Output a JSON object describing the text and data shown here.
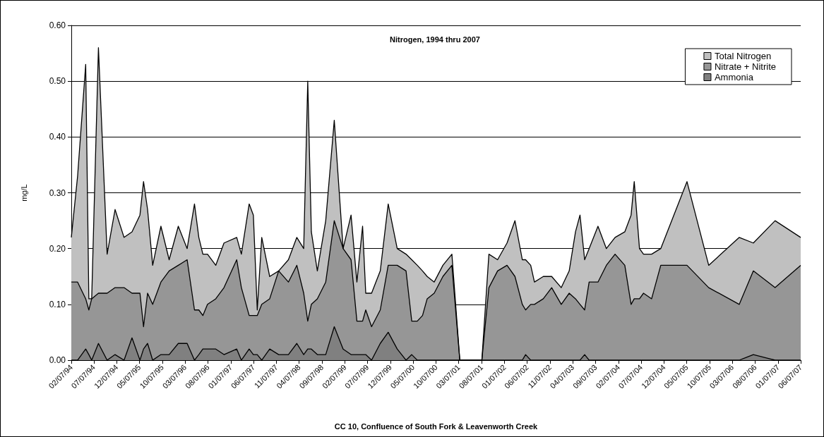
{
  "chart_data": {
    "type": "area",
    "title": "Nitrogen, 1994 thru 2007",
    "xlabel": "CC 10, Confluence of South Fork & Leavenworth Creek",
    "ylabel": "mg/L",
    "x": [
      "1994-02-07",
      "1994-03-21",
      "1994-05-14",
      "1994-06-04",
      "1994-06-23",
      "1994-08-07",
      "1994-10-04",
      "1994-11-26",
      "1995-01-25",
      "1995-03-19",
      "1995-05-11",
      "1995-06-04",
      "1995-07-01",
      "1995-08-04",
      "1995-09-28",
      "1995-11-22",
      "1996-01-22",
      "1996-03-21",
      "1996-05-09",
      "1996-06-07",
      "1996-07-04",
      "1996-08-04",
      "1996-09-28",
      "1996-11-22",
      "1997-02-15",
      "1997-03-18",
      "1997-05-09",
      "1997-06-06",
      "1997-07-02",
      "1997-08-01",
      "1997-09-23",
      "1997-11-22",
      "1998-01-26",
      "1998-03-23",
      "1998-05-08",
      "1998-06-04",
      "1998-06-28",
      "1998-08-07",
      "1998-10-02",
      "1998-11-28",
      "1999-01-26",
      "1999-03-20",
      "1999-04-28",
      "1999-06-05",
      "1999-06-26",
      "1999-08-04",
      "1999-10-01",
      "1999-11-23",
      "2000-01-22",
      "2000-03-21",
      "2000-04-28",
      "2000-06-04",
      "2000-07-09",
      "2000-08-09",
      "2000-09-25",
      "2000-11-22",
      "2001-01-21",
      "2001-03-15",
      "2001-08-09",
      "2001-09-25",
      "2001-11-22",
      "2002-01-24",
      "2002-03-18",
      "2002-05-06",
      "2002-05-28",
      "2002-07-01",
      "2002-07-26",
      "2002-09-23",
      "2002-11-18",
      "2003-01-21",
      "2003-03-15",
      "2003-04-26",
      "2003-05-26",
      "2003-06-26",
      "2003-07-26",
      "2003-09-23",
      "2003-11-18",
      "2004-01-15",
      "2004-03-20",
      "2004-05-01",
      "2004-05-22",
      "2004-06-26",
      "2004-07-23",
      "2004-09-15",
      "2004-11-15",
      "2005-05-09",
      "2005-10-01",
      "2006-04-23",
      "2006-07-26",
      "2006-12-18",
      "2007-06-07"
    ],
    "series": [
      {
        "name": "Total Nitrogen",
        "color": "#c0c0c0",
        "values": [
          0.22,
          0.33,
          0.53,
          0.11,
          0.11,
          0.56,
          0.19,
          0.27,
          0.22,
          0.23,
          0.26,
          0.32,
          0.27,
          0.17,
          0.24,
          0.18,
          0.24,
          0.2,
          0.28,
          0.22,
          0.19,
          0.19,
          0.17,
          0.21,
          0.22,
          0.19,
          0.28,
          0.26,
          0.09,
          0.22,
          0.15,
          0.16,
          0.18,
          0.22,
          0.2,
          0.5,
          0.23,
          0.16,
          0.25,
          0.43,
          0.2,
          0.26,
          0.14,
          0.24,
          0.12,
          0.12,
          0.16,
          0.28,
          0.2,
          0.19,
          0.18,
          0.17,
          0.16,
          0.15,
          0.14,
          0.17,
          0.19,
          0,
          0,
          0.19,
          0.18,
          0.21,
          0.25,
          0.18,
          0.18,
          0.17,
          0.14,
          0.15,
          0.15,
          0.13,
          0.16,
          0.23,
          0.26,
          0.18,
          0.2,
          0.24,
          0.2,
          0.22,
          0.23,
          0.26,
          0.32,
          0.2,
          0.19,
          0.19,
          0.2,
          0.32,
          0.17,
          0.22,
          0.21,
          0.25,
          0.22
        ]
      },
      {
        "name": "Nitrate + Nitrite",
        "color": "#969696",
        "values": [
          0.14,
          0.14,
          0.11,
          0.09,
          0.11,
          0.12,
          0.12,
          0.13,
          0.13,
          0.12,
          0.12,
          0.06,
          0.12,
          0.1,
          0.14,
          0.16,
          0.17,
          0.18,
          0.09,
          0.09,
          0.08,
          0.1,
          0.11,
          0.13,
          0.18,
          0.13,
          0.08,
          0.08,
          0.08,
          0.1,
          0.11,
          0.16,
          0.14,
          0.17,
          0.12,
          0.07,
          0.1,
          0.11,
          0.14,
          0.25,
          0.2,
          0.18,
          0.07,
          0.07,
          0.09,
          0.06,
          0.09,
          0.17,
          0.17,
          0.16,
          0.07,
          0.07,
          0.08,
          0.11,
          0.12,
          0.15,
          0.17,
          0,
          0,
          0.13,
          0.16,
          0.17,
          0.15,
          0.1,
          0.09,
          0.1,
          0.1,
          0.11,
          0.13,
          0.1,
          0.12,
          0.11,
          0.1,
          0.09,
          0.14,
          0.14,
          0.17,
          0.19,
          0.17,
          0.1,
          0.11,
          0.11,
          0.12,
          0.11,
          0.17,
          0.17,
          0.13,
          0.1,
          0.16,
          0.13,
          0.17
        ]
      },
      {
        "name": "Ammonia",
        "color": "#808080",
        "values": [
          0,
          0,
          0.02,
          0.01,
          0,
          0.03,
          0,
          0.01,
          0,
          0.04,
          0,
          0.02,
          0.03,
          0,
          0.01,
          0.01,
          0.03,
          0.03,
          0,
          0.01,
          0.02,
          0.02,
          0.02,
          0.01,
          0.02,
          0,
          0.02,
          0.01,
          0.01,
          0,
          0.02,
          0.01,
          0.01,
          0.03,
          0.01,
          0.02,
          0.02,
          0.01,
          0.01,
          0.06,
          0.02,
          0.01,
          0.01,
          0.01,
          0.01,
          0,
          0.03,
          0.05,
          0.02,
          0,
          0.01,
          0,
          0,
          0,
          0,
          0,
          0,
          0,
          0,
          0,
          0,
          0,
          0,
          0,
          0.01,
          0,
          0,
          0,
          0,
          0,
          0,
          0,
          0,
          0.01,
          0,
          0,
          0,
          0,
          0,
          0,
          0,
          0,
          0,
          0,
          0,
          0,
          0,
          0,
          0.01,
          0,
          0
        ]
      }
    ],
    "xlim": [
      "1994-02-07",
      "2007-06-07"
    ],
    "xticks": [
      {
        "value": "1994-02-07",
        "label": "02/07/94"
      },
      {
        "value": "1994-07-07",
        "label": "07/07/94"
      },
      {
        "value": "1994-12-07",
        "label": "12/07/94"
      },
      {
        "value": "1995-05-07",
        "label": "05/07/95"
      },
      {
        "value": "1995-10-07",
        "label": "10/07/95"
      },
      {
        "value": "1996-03-07",
        "label": "03/07/96"
      },
      {
        "value": "1996-08-07",
        "label": "08/07/96"
      },
      {
        "value": "1997-01-07",
        "label": "01/07/97"
      },
      {
        "value": "1997-06-07",
        "label": "06/07/97"
      },
      {
        "value": "1997-11-07",
        "label": "11/07/97"
      },
      {
        "value": "1998-04-07",
        "label": "04/07/98"
      },
      {
        "value": "1998-09-07",
        "label": "09/07/98"
      },
      {
        "value": "1999-02-07",
        "label": "02/07/99"
      },
      {
        "value": "1999-07-07",
        "label": "07/07/99"
      },
      {
        "value": "1999-12-07",
        "label": "12/07/99"
      },
      {
        "value": "2000-05-07",
        "label": "05/07/00"
      },
      {
        "value": "2000-10-07",
        "label": "10/07/00"
      },
      {
        "value": "2001-03-07",
        "label": "03/07/01"
      },
      {
        "value": "2001-08-07",
        "label": "08/07/01"
      },
      {
        "value": "2002-01-07",
        "label": "01/07/02"
      },
      {
        "value": "2002-06-07",
        "label": "06/07/02"
      },
      {
        "value": "2002-11-07",
        "label": "11/07/02"
      },
      {
        "value": "2003-04-07",
        "label": "04/07/03"
      },
      {
        "value": "2003-09-07",
        "label": "09/07/03"
      },
      {
        "value": "2004-02-07",
        "label": "02/07/04"
      },
      {
        "value": "2004-07-07",
        "label": "07/07/04"
      },
      {
        "value": "2004-12-07",
        "label": "12/07/04"
      },
      {
        "value": "2005-05-07",
        "label": "05/07/05"
      },
      {
        "value": "2005-10-07",
        "label": "10/07/05"
      },
      {
        "value": "2006-03-07",
        "label": "03/07/06"
      },
      {
        "value": "2006-08-07",
        "label": "08/07/06"
      },
      {
        "value": "2007-01-07",
        "label": "01/07/07"
      },
      {
        "value": "2007-06-07",
        "label": "06/07/07"
      }
    ],
    "ylim": [
      0,
      0.6
    ],
    "yticks": [
      {
        "value": 0,
        "label": "0.00"
      },
      {
        "value": 0.1,
        "label": "0.10"
      },
      {
        "value": 0.2,
        "label": "0.20"
      },
      {
        "value": 0.3,
        "label": "0.30"
      },
      {
        "value": 0.4,
        "label": "0.40"
      },
      {
        "value": 0.5,
        "label": "0.50"
      },
      {
        "value": 0.6,
        "label": "0.60"
      }
    ],
    "grid": "y",
    "legend": "top right",
    "marker": "none",
    "line_style": "solid"
  }
}
